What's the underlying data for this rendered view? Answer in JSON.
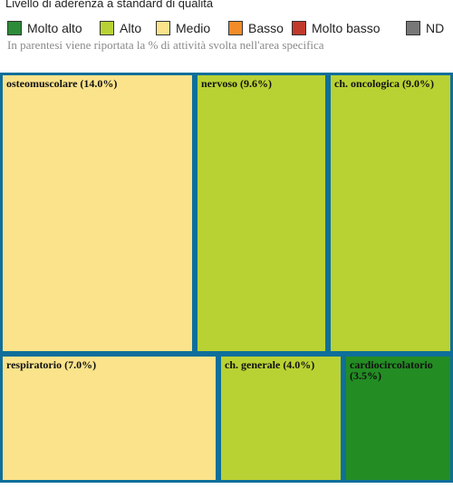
{
  "header": {
    "title": "Livello di aderenza a standard di qualità",
    "note": "In parentesi viene riportata la % di attività svolta nell'area specifica"
  },
  "legend": [
    {
      "label": "Molto alto",
      "color": "#2e8b3a"
    },
    {
      "label": "Alto",
      "color": "#b9d233"
    },
    {
      "label": "Medio",
      "color": "#fae38a"
    },
    {
      "label": "Basso",
      "color": "#f28c28"
    },
    {
      "label": "Molto basso",
      "color": "#c0392b"
    },
    {
      "label": "ND",
      "color": "#777777"
    }
  ],
  "chart_data": {
    "type": "treemap",
    "title": "Livello di aderenza a standard di qualità",
    "items": [
      {
        "name": "osteomuscolare",
        "label": "osteomuscolare (14.0%)",
        "value": 14.0,
        "level": "Medio",
        "color": "#fae38a"
      },
      {
        "name": "nervoso",
        "label": "nervoso (9.6%)",
        "value": 9.6,
        "level": "Alto",
        "color": "#b9d233"
      },
      {
        "name": "ch. oncologica",
        "label": "ch. oncologica (9.0%)",
        "value": 9.0,
        "level": "Alto",
        "color": "#b9d233"
      },
      {
        "name": "respiratorio",
        "label": "respiratorio (7.0%)",
        "value": 7.0,
        "level": "Medio",
        "color": "#fae38a"
      },
      {
        "name": "ch. generale",
        "label": "ch. generale (4.0%)",
        "value": 4.0,
        "level": "Alto",
        "color": "#b9d233"
      },
      {
        "name": "cardiocircolatorio",
        "label": "cardiocircolatorio (3.5%)",
        "value": 3.5,
        "level": "Molto alto",
        "color": "#238c23"
      }
    ]
  }
}
